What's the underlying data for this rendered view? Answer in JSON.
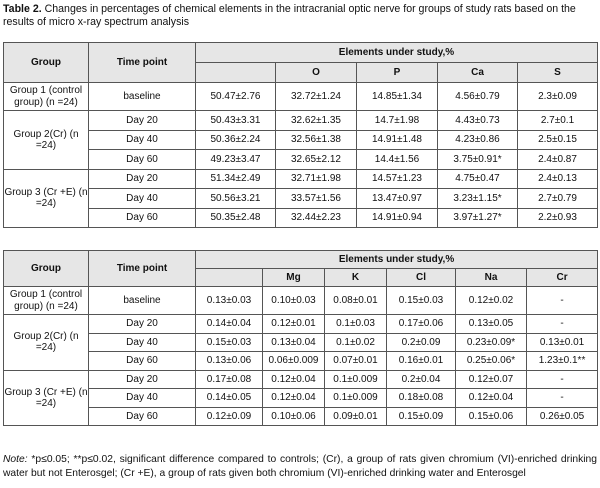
{
  "caption": {
    "label": "Table 2.",
    "text": "Changes in percentages of chemical elements in the intracranial optic nerve for groups of study rats based on the results of micro x-ray spectrum analysis"
  },
  "table1": {
    "headers": {
      "group": "Group",
      "time": "Time point",
      "elements": "Elements under study,%",
      "cols": [
        "",
        "O",
        "P",
        "Ca",
        "S"
      ]
    },
    "groups": [
      {
        "label": "Group 1 (control group) (n =24)",
        "rows": [
          {
            "time": "baseline",
            "values": [
              "50.47±2.76",
              "32.72±1.24",
              "14.85±1.34",
              "4.56±0.79",
              "2.3±0.09"
            ]
          }
        ]
      },
      {
        "label": "Group 2(Cr) (n =24)",
        "rows": [
          {
            "time": "Day 20",
            "values": [
              "50.43±3.31",
              "32.62±1.35",
              "14.7±1.98",
              "4.43±0.73",
              "2.7±0.1"
            ]
          },
          {
            "time": "Day 40",
            "values": [
              "50.36±2.24",
              "32.56±1.38",
              "14.91±1.48",
              "4.23±0.86",
              "2.5±0.15"
            ]
          },
          {
            "time": "Day 60",
            "values": [
              "49.23±3.47",
              "32.65±2.12",
              "14.4±1.56",
              "3.75±0.91*",
              "2.4±0.87"
            ]
          }
        ]
      },
      {
        "label": "Group 3 (Cr +E) (n =24)",
        "rows": [
          {
            "time": "Day 20",
            "values": [
              "51.34±2.49",
              "32.71±1.98",
              "14.57±1.23",
              "4.75±0.47",
              "2.4±0.13"
            ]
          },
          {
            "time": "Day 40",
            "values": [
              "50.56±3.21",
              "33.57±1.56",
              "13.47±0.97",
              "3.23±1.15*",
              "2.7±0.79"
            ]
          },
          {
            "time": "Day 60",
            "values": [
              "50.35±2.48",
              "32.44±2.23",
              "14.91±0.94",
              "3.97±1.27*",
              "2.2±0.93"
            ]
          }
        ]
      }
    ]
  },
  "table2": {
    "headers": {
      "group": "Group",
      "time": "Time point",
      "elements": "Elements under study,%",
      "cols": [
        "",
        "Mg",
        "K",
        "Cl",
        "Na",
        "Cr"
      ]
    },
    "groups": [
      {
        "label": "Group 1 (control group) (n =24)",
        "rows": [
          {
            "time": "baseline",
            "values": [
              "0.13±0.03",
              "0.10±0.03",
              "0.08±0.01",
              "0.15±0.03",
              "0.12±0.02",
              "-"
            ]
          }
        ]
      },
      {
        "label": "Group 2(Cr) (n =24)",
        "rows": [
          {
            "time": "Day 20",
            "values": [
              "0.14±0.04",
              "0.12±0.01",
              "0.1±0.03",
              "0.17±0.06",
              "0.13±0.05",
              "-"
            ]
          },
          {
            "time": "Day 40",
            "values": [
              "0.15±0.03",
              "0.13±0.04",
              "0.1±0.02",
              "0.2±0.09",
              "0.23±0.09*",
              "0.13±0.01"
            ]
          },
          {
            "time": "Day 60",
            "values": [
              "0.13±0.06",
              "0.06±0.009",
              "0.07±0.01",
              "0.16±0.01",
              "0.25±0.06*",
              "1.23±0.1**"
            ]
          }
        ]
      },
      {
        "label": "Group 3 (Cr +E) (n =24)",
        "rows": [
          {
            "time": "Day 20",
            "values": [
              "0.17±0.08",
              "0.12±0.04",
              "0.1±0.009",
              "0.2±0.04",
              "0.12±0.07",
              "-"
            ]
          },
          {
            "time": "Day 40",
            "values": [
              "0.14±0.05",
              "0.12±0.04",
              "0.1±0.009",
              "0.18±0.08",
              "0.12±0.04",
              "-"
            ]
          },
          {
            "time": "Day 60",
            "values": [
              "0.12±0.09",
              "0.10±0.06",
              "0.09±0.01",
              "0.15±0.09",
              "0.15±0.06",
              "0.26±0.05"
            ]
          }
        ]
      }
    ]
  },
  "note": {
    "label": "Note:",
    "text": " *p≤0.05; **p≤0.02, significant difference compared to controls; (Cr), a group of rats given chromium (VI)-enriched drinking water but not Enterosgel; (Cr +E), a group of rats given both chromium (VI)-enriched drinking water and Enterosgel"
  }
}
